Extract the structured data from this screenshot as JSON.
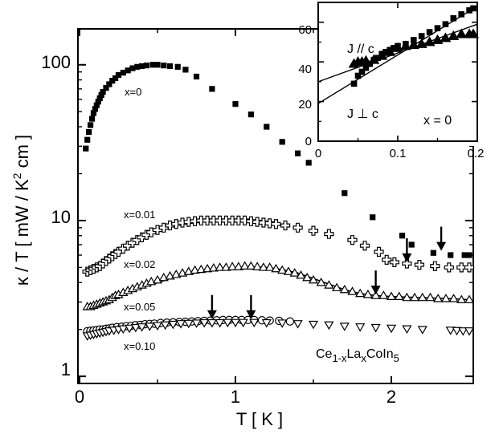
{
  "chart_data": [
    {
      "type": "scatter",
      "xlabel": "T [ K ]",
      "ylabel": "κ / T [ mW / K² cm ]",
      "ylabel_parts": {
        "main": "κ / T [ mW / K",
        "sup": "2",
        "tail": " cm ]"
      },
      "xlim": [
        0,
        2.5
      ],
      "ylim": [
        0.9,
        170
      ],
      "yscale": "log",
      "x_ticks": [
        "0",
        "1",
        "2"
      ],
      "y_ticks": [
        "1",
        "10",
        "100"
      ],
      "compound_label": {
        "main": "Ce",
        "sub1": "1-x",
        "mid": "La",
        "sub2": "x",
        "tail": "CoIn",
        "sub3": "5"
      },
      "series": [
        {
          "name": "x=0",
          "marker": "square",
          "filled": true,
          "x": [
            0.04,
            0.05,
            0.06,
            0.07,
            0.08,
            0.09,
            0.1,
            0.11,
            0.12,
            0.13,
            0.14,
            0.15,
            0.17,
            0.19,
            0.21,
            0.23,
            0.25,
            0.28,
            0.31,
            0.34,
            0.37,
            0.4,
            0.43,
            0.47,
            0.5,
            0.54,
            0.58,
            0.63,
            0.68,
            0.75,
            0.85,
            1.0,
            1.1,
            1.2,
            1.3,
            1.4,
            1.47,
            1.7,
            1.88,
            2.07,
            2.13,
            2.27,
            2.38,
            2.47,
            2.5
          ],
          "y": [
            29,
            33,
            37,
            41,
            45,
            49,
            52,
            55,
            58,
            61,
            64,
            67,
            71,
            75,
            79,
            82,
            86,
            89,
            92,
            95,
            97,
            98,
            99,
            100,
            100,
            99,
            98,
            97,
            93,
            84,
            70,
            56,
            48,
            40,
            32,
            27,
            23.5,
            15,
            10.5,
            8,
            7,
            6.2,
            6,
            6,
            6
          ]
        },
        {
          "name": "x=0.01",
          "marker": "plus-open",
          "filled": false,
          "x": [
            0.05,
            0.07,
            0.09,
            0.11,
            0.13,
            0.15,
            0.17,
            0.19,
            0.21,
            0.23,
            0.25,
            0.28,
            0.31,
            0.34,
            0.37,
            0.4,
            0.43,
            0.46,
            0.5,
            0.54,
            0.58,
            0.62,
            0.66,
            0.7,
            0.74,
            0.78,
            0.82,
            0.86,
            0.9,
            0.94,
            0.98,
            1.02,
            1.06,
            1.1,
            1.14,
            1.18,
            1.22,
            1.26,
            1.32,
            1.4,
            1.5,
            1.6,
            1.75,
            1.83,
            1.92,
            1.97,
            2.02,
            2.1,
            2.18,
            2.28,
            2.37,
            2.45,
            2.5
          ],
          "y": [
            4.7,
            4.8,
            4.9,
            5.0,
            5.1,
            5.3,
            5.5,
            5.7,
            5.9,
            6.1,
            6.3,
            6.6,
            6.9,
            7.2,
            7.5,
            7.8,
            8.1,
            8.4,
            8.7,
            9.0,
            9.3,
            9.5,
            9.7,
            9.8,
            9.9,
            10.0,
            10.0,
            10.0,
            10.0,
            10.0,
            10.0,
            10.0,
            10.0,
            9.9,
            9.8,
            9.7,
            9.6,
            9.5,
            9.3,
            9.0,
            8.6,
            8.2,
            7.5,
            6.9,
            6.3,
            5.6,
            5.4,
            5.3,
            5.2,
            5.1,
            5.0,
            5.0,
            5.0
          ]
        },
        {
          "name": "x=0.02",
          "marker": "triangle-up-open",
          "filled": false,
          "x": [
            0.05,
            0.07,
            0.09,
            0.11,
            0.13,
            0.15,
            0.17,
            0.19,
            0.21,
            0.23,
            0.25,
            0.28,
            0.31,
            0.34,
            0.37,
            0.4,
            0.43,
            0.46,
            0.5,
            0.54,
            0.58,
            0.62,
            0.66,
            0.7,
            0.74,
            0.78,
            0.82,
            0.86,
            0.9,
            0.94,
            0.98,
            1.02,
            1.06,
            1.1,
            1.14,
            1.18,
            1.22,
            1.26,
            1.3,
            1.34,
            1.38,
            1.42,
            1.46,
            1.5,
            1.55,
            1.6,
            1.65,
            1.7,
            1.75,
            1.8,
            1.85,
            1.9,
            1.95,
            2.0,
            2.05,
            2.1,
            2.15,
            2.2,
            2.25,
            2.3,
            2.35,
            2.4,
            2.45,
            2.5
          ],
          "y": [
            2.8,
            2.8,
            2.85,
            2.9,
            2.95,
            3.0,
            3.05,
            3.1,
            3.2,
            3.3,
            3.35,
            3.45,
            3.55,
            3.65,
            3.75,
            3.85,
            3.95,
            4.05,
            4.15,
            4.3,
            4.4,
            4.5,
            4.6,
            4.7,
            4.8,
            4.85,
            4.9,
            4.95,
            5.0,
            5.0,
            5.05,
            5.05,
            5.1,
            5.1,
            5.05,
            5.0,
            5.0,
            4.9,
            4.8,
            4.7,
            4.6,
            4.45,
            4.3,
            4.15,
            4.0,
            3.85,
            3.7,
            3.6,
            3.5,
            3.4,
            3.35,
            3.3,
            3.3,
            3.25,
            3.25,
            3.2,
            3.2,
            3.2,
            3.2,
            3.15,
            3.15,
            3.15,
            3.1,
            3.1
          ]
        },
        {
          "name": "x=0.05",
          "marker": "circle-open",
          "filled": false,
          "x": [
            0.05,
            0.07,
            0.09,
            0.11,
            0.13,
            0.15,
            0.17,
            0.19,
            0.21,
            0.24,
            0.27,
            0.3,
            0.33,
            0.36,
            0.39,
            0.42,
            0.45,
            0.48,
            0.52,
            0.56,
            0.6,
            0.64,
            0.68,
            0.72,
            0.76,
            0.8,
            0.84,
            0.88,
            0.92,
            0.96,
            1.0,
            1.04,
            1.08,
            1.12,
            1.17,
            1.22,
            1.28,
            1.35
          ],
          "y": [
            1.95,
            1.96,
            1.97,
            1.98,
            2.0,
            2.0,
            2.02,
            2.03,
            2.05,
            2.07,
            2.08,
            2.1,
            2.11,
            2.13,
            2.14,
            2.16,
            2.17,
            2.18,
            2.2,
            2.21,
            2.22,
            2.23,
            2.24,
            2.25,
            2.26,
            2.27,
            2.28,
            2.29,
            2.3,
            2.3,
            2.3,
            2.3,
            2.3,
            2.3,
            2.29,
            2.28,
            2.27,
            2.25
          ]
        },
        {
          "name": "x=0.10",
          "marker": "triangle-down-open",
          "filled": false,
          "x": [
            0.05,
            0.07,
            0.09,
            0.11,
            0.13,
            0.15,
            0.17,
            0.19,
            0.22,
            0.25,
            0.28,
            0.32,
            0.36,
            0.4,
            0.45,
            0.5,
            0.55,
            0.6,
            0.65,
            0.7,
            0.75,
            0.8,
            0.85,
            0.9,
            0.95,
            1.0,
            1.05,
            1.12,
            1.2,
            1.3,
            1.4,
            1.5,
            1.6,
            1.7,
            1.8,
            1.9,
            2.0,
            2.1,
            2.2,
            2.38,
            2.42,
            2.46,
            2.5
          ],
          "y": [
            1.82,
            1.84,
            1.86,
            1.88,
            1.9,
            1.92,
            1.94,
            1.96,
            1.98,
            2.0,
            2.02,
            2.04,
            2.06,
            2.08,
            2.1,
            2.12,
            2.14,
            2.16,
            2.18,
            2.19,
            2.2,
            2.21,
            2.21,
            2.21,
            2.22,
            2.22,
            2.22,
            2.22,
            2.21,
            2.2,
            2.18,
            2.16,
            2.14,
            2.1,
            2.08,
            2.06,
            2.04,
            2.02,
            2.0,
            1.98,
            1.97,
            1.96,
            1.96
          ]
        }
      ],
      "fit_lines": [
        {
          "for": "x=0.02",
          "x": [
            0.05,
            0.2,
            0.4,
            0.6,
            0.8,
            1.0,
            1.1,
            1.2,
            1.3,
            1.4,
            1.5,
            1.6,
            1.7,
            1.8,
            1.9,
            2.0,
            2.2,
            2.4,
            2.5
          ],
          "y": [
            2.75,
            3.1,
            3.7,
            4.3,
            4.75,
            5.0,
            5.05,
            5.0,
            4.85,
            4.6,
            4.25,
            3.9,
            3.6,
            3.4,
            3.3,
            3.25,
            3.2,
            3.15,
            3.1
          ]
        }
      ],
      "arrows_at_x": [
        0.85,
        1.1,
        1.9,
        2.1,
        2.32
      ],
      "series_labels": [
        "x=0",
        "x=0.01",
        "x=0.02",
        "x=0.05",
        "x=0.10"
      ]
    },
    {
      "type": "scatter",
      "role": "inset",
      "xlabel": "",
      "ylabel": "",
      "xlim": [
        0,
        0.2
      ],
      "ylim": [
        0,
        70
      ],
      "yscale": "linear",
      "x_ticks": [
        "0",
        "0.1",
        "0.2"
      ],
      "y_ticks": [
        "0",
        "20",
        "40",
        "60"
      ],
      "series": [
        {
          "name": "J // c",
          "marker": "square",
          "filled": true,
          "x": [
            0.045,
            0.05,
            0.055,
            0.06,
            0.065,
            0.07,
            0.075,
            0.08,
            0.085,
            0.09,
            0.095,
            0.1,
            0.11,
            0.12,
            0.13,
            0.14,
            0.15,
            0.16,
            0.17,
            0.18,
            0.19,
            0.195
          ],
          "y": [
            29,
            33,
            35,
            37,
            39,
            41,
            42,
            44,
            45,
            46,
            47,
            48,
            49,
            51,
            53,
            55,
            57,
            59,
            62,
            64,
            66,
            67
          ]
        },
        {
          "name": "J ⊥ c",
          "marker": "triangle-up",
          "filled": true,
          "x": [
            0.045,
            0.05,
            0.055,
            0.06,
            0.07,
            0.08,
            0.09,
            0.1,
            0.11,
            0.12,
            0.13,
            0.14,
            0.15,
            0.16,
            0.17,
            0.18,
            0.19,
            0.195
          ],
          "y": [
            39,
            40,
            40,
            40.5,
            41,
            43,
            45,
            47,
            48,
            48.5,
            49,
            50,
            51,
            52,
            53,
            54,
            54,
            54
          ]
        }
      ],
      "fit_lines": [
        {
          "for": "J // c",
          "x": [
            0,
            0.2
          ],
          "y": [
            19,
            68
          ]
        },
        {
          "for": "J ⊥ c",
          "x": [
            0,
            0.2
          ],
          "y": [
            30,
            59
          ]
        }
      ],
      "labels": {
        "parallel": "J // c",
        "perp": "J ⊥ c",
        "x0": "x = 0"
      }
    }
  ]
}
